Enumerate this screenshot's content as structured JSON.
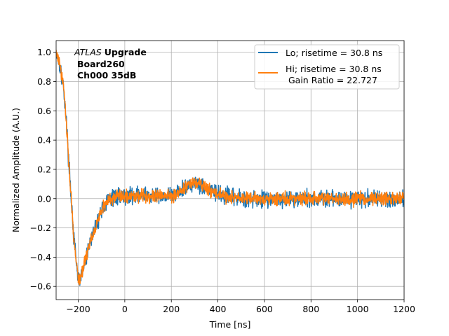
{
  "chart_data": {
    "type": "line",
    "xlabel": "Time [ns]",
    "ylabel": "Normalized Amplitude (A.U.)",
    "xlim": [
      -295,
      1200
    ],
    "ylim": [
      -0.69,
      1.08
    ],
    "xticks": [
      -200,
      0,
      200,
      400,
      600,
      800,
      1000,
      1200
    ],
    "xtick_labels": [
      "−200",
      "0",
      "200",
      "400",
      "600",
      "800",
      "1000",
      "1200"
    ],
    "yticks": [
      -0.6,
      -0.4,
      -0.2,
      0.0,
      0.2,
      0.4,
      0.6,
      0.8,
      1.0
    ],
    "ytick_labels": [
      "−0.6",
      "−0.4",
      "−0.2",
      "0.0",
      "0.2",
      "0.4",
      "0.6",
      "0.8",
      "1.0"
    ],
    "grid": true,
    "legend_location": "upper right",
    "annotation": {
      "line1_italic": "ATLAS",
      "line1_bold": "Upgrade",
      "line2": "Board260",
      "line3": "Ch000 35dB"
    },
    "series": [
      {
        "name": "Lo; risetime = 30.8 ns",
        "color": "#1f77b4",
        "noise": 0.028,
        "x": [
          -295,
          -280,
          -260,
          -250,
          -240,
          -230,
          -220,
          -210,
          -200,
          -190,
          -180,
          -170,
          -160,
          -150,
          -140,
          -130,
          -120,
          -110,
          -100,
          -90,
          -80,
          -70,
          -60,
          -50,
          -40,
          -30,
          -20,
          -10,
          0,
          25,
          50,
          100,
          150,
          200,
          240,
          260,
          280,
          300,
          320,
          340,
          360,
          380,
          400,
          420,
          450,
          500,
          550,
          600,
          700,
          800,
          900,
          1000,
          1100,
          1200
        ],
        "y": [
          1.0,
          0.92,
          0.72,
          0.5,
          0.24,
          0.0,
          -0.25,
          -0.42,
          -0.56,
          -0.55,
          -0.49,
          -0.43,
          -0.37,
          -0.3,
          -0.25,
          -0.21,
          -0.17,
          -0.12,
          -0.08,
          -0.05,
          -0.03,
          -0.02,
          0.0,
          0.01,
          0.01,
          0.015,
          0.02,
          0.02,
          0.02,
          0.02,
          0.025,
          0.02,
          0.02,
          0.02,
          0.05,
          0.08,
          0.1,
          0.11,
          0.1,
          0.08,
          0.06,
          0.05,
          0.03,
          0.02,
          0.01,
          0.0,
          0.0,
          0.0,
          0.0,
          0.0,
          0.0,
          0.0,
          0.0,
          0.0
        ]
      },
      {
        "name": "Hi; risetime = 30.8 ns\n Gain Ratio = 22.727",
        "color": "#ff7f0e",
        "noise": 0.022,
        "x": [
          -295,
          -280,
          -260,
          -250,
          -240,
          -230,
          -220,
          -210,
          -200,
          -190,
          -180,
          -170,
          -160,
          -150,
          -140,
          -130,
          -120,
          -110,
          -100,
          -90,
          -80,
          -70,
          -60,
          -50,
          -40,
          -30,
          -20,
          -10,
          0,
          25,
          50,
          100,
          150,
          200,
          240,
          260,
          280,
          300,
          320,
          340,
          360,
          380,
          400,
          420,
          450,
          500,
          550,
          600,
          700,
          800,
          900,
          1000,
          1100,
          1200
        ],
        "y": [
          1.0,
          0.92,
          0.72,
          0.5,
          0.24,
          0.0,
          -0.25,
          -0.42,
          -0.55,
          -0.54,
          -0.48,
          -0.42,
          -0.36,
          -0.3,
          -0.25,
          -0.21,
          -0.17,
          -0.12,
          -0.08,
          -0.05,
          -0.03,
          -0.02,
          0.0,
          0.01,
          0.01,
          0.015,
          0.02,
          0.02,
          0.02,
          0.02,
          0.025,
          0.02,
          0.02,
          0.02,
          0.05,
          0.08,
          0.1,
          0.11,
          0.1,
          0.08,
          0.06,
          0.05,
          0.03,
          0.02,
          0.01,
          0.0,
          0.0,
          0.0,
          0.0,
          0.0,
          0.0,
          0.0,
          0.0,
          0.0
        ]
      }
    ]
  }
}
